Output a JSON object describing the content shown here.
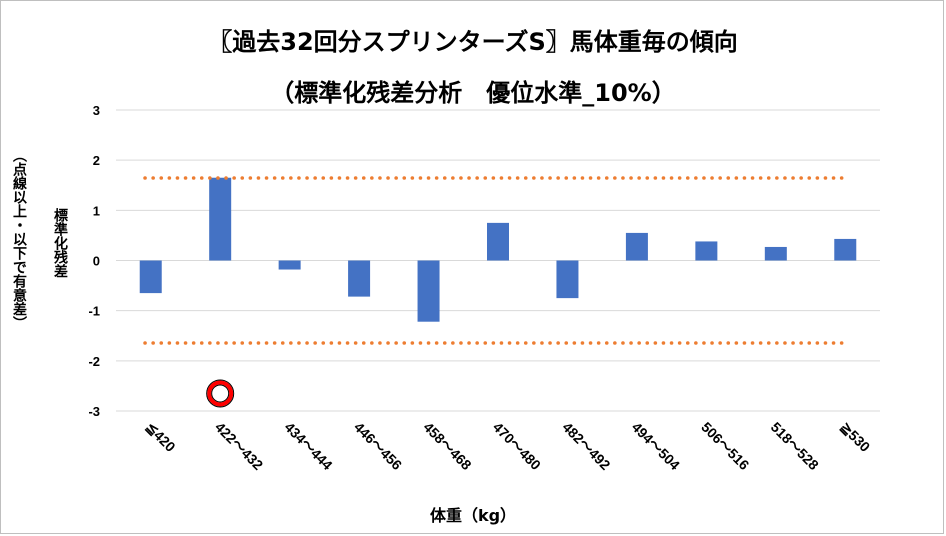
{
  "chart_data": {
    "type": "bar",
    "title": "〖過去32回分スプリンターズS〗馬体重毎の傾向",
    "subtitle": "（標準化残差分析　優位水準_10%）",
    "xlabel": "体重（kg）",
    "ylabel": "標準化残差",
    "ylabel_note": "（点線以上・以下で有意差）",
    "categories": [
      "≦420",
      "422～432",
      "434～444",
      "446～456",
      "458～468",
      "470～480",
      "482～492",
      "494～504",
      "506～516",
      "518～528",
      "≧530"
    ],
    "values": [
      -0.65,
      1.65,
      -0.18,
      -0.72,
      -1.22,
      0.75,
      -0.75,
      0.55,
      0.38,
      0.27,
      0.43
    ],
    "ylim": [
      -3,
      3
    ],
    "yticks": [
      "3",
      "2",
      "1",
      "0",
      "-1",
      "-2",
      "-3"
    ],
    "threshold_lines": [
      1.645,
      -1.645
    ],
    "grid": true,
    "legend": "none",
    "marker": {
      "category": "422～432",
      "y": -2.65,
      "symbol": "circle"
    },
    "colors": {
      "bar": "#4472C4",
      "threshold": "#ED7D31",
      "marker": "#FF0000",
      "grid": "#D9D9D9"
    }
  }
}
